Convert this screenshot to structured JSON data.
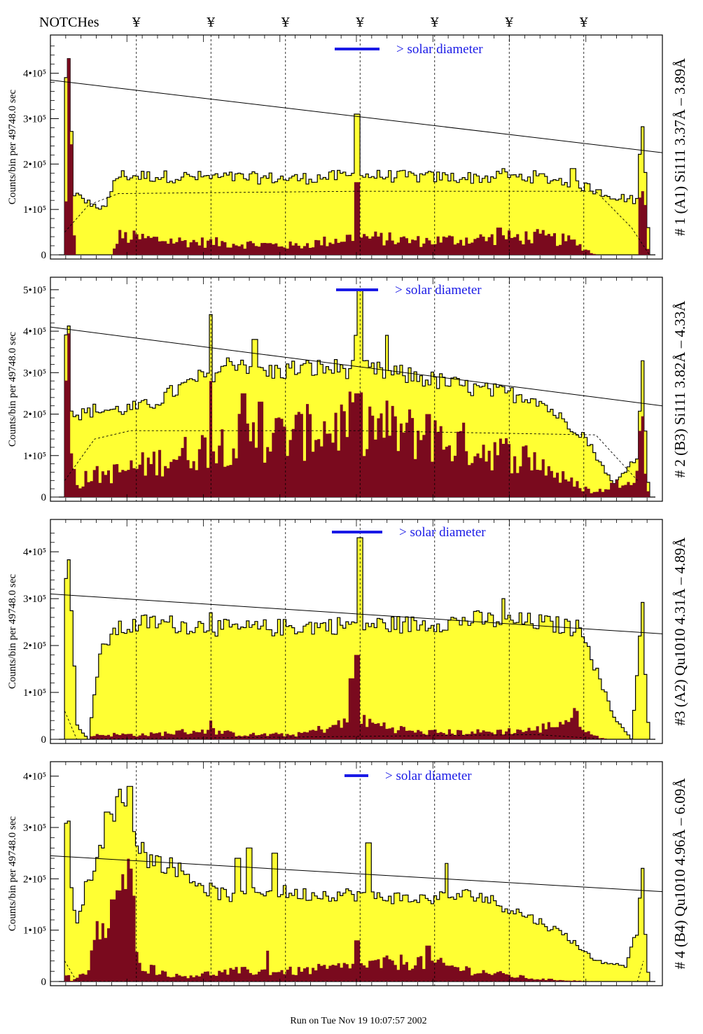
{
  "header": {
    "notches_label": "NOTCHes",
    "notch_symbol": "¥"
  },
  "notch_positions": [
    0.13,
    0.255,
    0.38,
    0.505,
    0.63,
    0.755,
    0.88
  ],
  "footer": {
    "run_text": "Run on Tue Nov 19 10:07:57 2002"
  },
  "colors": {
    "fill": "#ffff33",
    "dark": "#7a0a1e",
    "accent": "#1a1ae6"
  },
  "chart_data": [
    {
      "type": "area",
      "title": "# 1 (A1) Si111  3.37Å – 3.89Å",
      "ylabel": "Counts/bin per  49748.0 sec",
      "solar_label": "> solar diameter",
      "ylim": [
        0,
        475000
      ],
      "yticks": [
        0,
        100000,
        200000,
        300000,
        400000
      ],
      "ytick_labels": [
        "0",
        "1•10⁵",
        "2•10⁵",
        "3•10⁵",
        "4•10⁵"
      ],
      "xlim": [
        0,
        1
      ],
      "fit_line": [
        [
          0,
          385000
        ],
        [
          1,
          225000
        ]
      ],
      "bright_envelope": [
        [
          0.0,
          0
        ],
        [
          0.01,
          0
        ],
        [
          0.012,
          400000
        ],
        [
          0.018,
          430000
        ],
        [
          0.024,
          140000
        ],
        [
          0.04,
          120000
        ],
        [
          0.08,
          100000
        ],
        [
          0.09,
          160000
        ],
        [
          0.1,
          175000
        ],
        [
          0.2,
          172000
        ],
        [
          0.3,
          170000
        ],
        [
          0.4,
          168000
        ],
        [
          0.5,
          175000
        ],
        [
          0.6,
          172000
        ],
        [
          0.7,
          170000
        ],
        [
          0.8,
          172000
        ],
        [
          0.86,
          160000
        ],
        [
          0.93,
          130000
        ],
        [
          0.97,
          120000
        ],
        [
          0.978,
          320000
        ],
        [
          0.985,
          150000
        ],
        [
          0.99,
          0
        ],
        [
          1.0,
          0
        ]
      ],
      "bright_peaks": [
        [
          0.5,
          310000
        ],
        [
          0.745,
          190000
        ],
        [
          0.86,
          190000
        ]
      ],
      "dark_envelope": [
        [
          0.0,
          0
        ],
        [
          0.01,
          0
        ],
        [
          0.012,
          150000
        ],
        [
          0.016,
          330000
        ],
        [
          0.02,
          300000
        ],
        [
          0.024,
          50000
        ],
        [
          0.03,
          0
        ],
        [
          0.09,
          0
        ],
        [
          0.1,
          40000
        ],
        [
          0.2,
          30000
        ],
        [
          0.3,
          25000
        ],
        [
          0.4,
          20000
        ],
        [
          0.5,
          40000
        ],
        [
          0.6,
          30000
        ],
        [
          0.7,
          35000
        ],
        [
          0.8,
          40000
        ],
        [
          0.86,
          30000
        ],
        [
          0.9,
          0
        ],
        [
          0.97,
          0
        ],
        [
          0.975,
          180000
        ],
        [
          0.98,
          220000
        ],
        [
          0.985,
          30000
        ],
        [
          0.99,
          0
        ],
        [
          1.0,
          0
        ]
      ],
      "dark_peaks": [
        [
          0.5,
          160000
        ],
        [
          0.74,
          60000
        ]
      ],
      "dashed": [
        [
          0.01,
          50000
        ],
        [
          0.05,
          110000
        ],
        [
          0.1,
          135000
        ],
        [
          0.5,
          140000
        ],
        [
          0.9,
          140000
        ],
        [
          0.96,
          60000
        ],
        [
          0.99,
          0
        ]
      ]
    },
    {
      "type": "area",
      "title": "# 2 (B3) Si111  3.82Å – 4.33Å",
      "ylabel": "Counts/bin per  49748.0 sec",
      "solar_label": "> solar diameter",
      "ylim": [
        0,
        520000
      ],
      "yticks": [
        0,
        100000,
        200000,
        300000,
        400000,
        500000
      ],
      "ytick_labels": [
        "0",
        "1•10⁵",
        "2•10⁵",
        "3•10⁵",
        "4•10⁵",
        "5•10⁵"
      ],
      "xlim": [
        0,
        1
      ],
      "fit_line": [
        [
          0,
          410000
        ],
        [
          1,
          220000
        ]
      ],
      "bright_envelope": [
        [
          0.0,
          0
        ],
        [
          0.01,
          0
        ],
        [
          0.012,
          430000
        ],
        [
          0.016,
          460000
        ],
        [
          0.022,
          200000
        ],
        [
          0.04,
          200000
        ],
        [
          0.06,
          210000
        ],
        [
          0.1,
          210000
        ],
        [
          0.15,
          220000
        ],
        [
          0.2,
          260000
        ],
        [
          0.3,
          330000
        ],
        [
          0.35,
          300000
        ],
        [
          0.4,
          310000
        ],
        [
          0.5,
          310000
        ],
        [
          0.6,
          290000
        ],
        [
          0.7,
          260000
        ],
        [
          0.8,
          240000
        ],
        [
          0.85,
          180000
        ],
        [
          0.88,
          150000
        ],
        [
          0.93,
          30000
        ],
        [
          0.97,
          100000
        ],
        [
          0.978,
          330000
        ],
        [
          0.985,
          100000
        ],
        [
          0.99,
          0
        ],
        [
          1.0,
          0
        ]
      ],
      "bright_peaks": [
        [
          0.255,
          440000
        ],
        [
          0.33,
          380000
        ],
        [
          0.5,
          390000
        ],
        [
          0.505,
          500000
        ],
        [
          0.55,
          390000
        ]
      ],
      "dark_envelope": [
        [
          0.0,
          0
        ],
        [
          0.01,
          0
        ],
        [
          0.012,
          300000
        ],
        [
          0.016,
          350000
        ],
        [
          0.02,
          150000
        ],
        [
          0.03,
          30000
        ],
        [
          0.05,
          50000
        ],
        [
          0.1,
          60000
        ],
        [
          0.2,
          100000
        ],
        [
          0.3,
          140000
        ],
        [
          0.4,
          150000
        ],
        [
          0.5,
          180000
        ],
        [
          0.6,
          150000
        ],
        [
          0.7,
          120000
        ],
        [
          0.8,
          90000
        ],
        [
          0.85,
          40000
        ],
        [
          0.9,
          10000
        ],
        [
          0.97,
          60000
        ],
        [
          0.978,
          210000
        ],
        [
          0.985,
          30000
        ],
        [
          0.99,
          0
        ],
        [
          1.0,
          0
        ]
      ],
      "dark_peaks": [
        [
          0.255,
          280000
        ],
        [
          0.31,
          250000
        ],
        [
          0.34,
          230000
        ],
        [
          0.5,
          250000
        ],
        [
          0.42,
          200000
        ],
        [
          0.62,
          200000
        ]
      ],
      "dashed": [
        [
          0.01,
          40000
        ],
        [
          0.06,
          140000
        ],
        [
          0.12,
          160000
        ],
        [
          0.5,
          160000
        ],
        [
          0.9,
          150000
        ],
        [
          0.97,
          40000
        ]
      ]
    },
    {
      "type": "area",
      "title": "#3 (A2) Qu1010  4.31Å – 4.89Å",
      "ylabel": "Counts/bin per  49748.0 sec",
      "solar_label": "> solar diameter",
      "ylim": [
        0,
        460000
      ],
      "yticks": [
        0,
        100000,
        200000,
        300000,
        400000
      ],
      "ytick_labels": [
        "0",
        "1•10⁵",
        "2•10⁵",
        "3•10⁵",
        "4•10⁵"
      ],
      "xlim": [
        0,
        1
      ],
      "fit_line": [
        [
          0,
          310000
        ],
        [
          1,
          225000
        ]
      ],
      "bright_envelope": [
        [
          0.0,
          0
        ],
        [
          0.01,
          0
        ],
        [
          0.012,
          380000
        ],
        [
          0.016,
          410000
        ],
        [
          0.022,
          280000
        ],
        [
          0.03,
          30000
        ],
        [
          0.05,
          0
        ],
        [
          0.06,
          100000
        ],
        [
          0.07,
          180000
        ],
        [
          0.09,
          230000
        ],
        [
          0.15,
          250000
        ],
        [
          0.3,
          235000
        ],
        [
          0.4,
          240000
        ],
        [
          0.5,
          245000
        ],
        [
          0.6,
          245000
        ],
        [
          0.7,
          255000
        ],
        [
          0.8,
          250000
        ],
        [
          0.88,
          235000
        ],
        [
          0.9,
          150000
        ],
        [
          0.93,
          50000
        ],
        [
          0.96,
          0
        ],
        [
          0.97,
          150000
        ],
        [
          0.978,
          300000
        ],
        [
          0.985,
          100000
        ],
        [
          0.99,
          0
        ],
        [
          1.0,
          0
        ]
      ],
      "bright_peaks": [
        [
          0.255,
          270000
        ],
        [
          0.505,
          430000
        ],
        [
          0.745,
          300000
        ]
      ],
      "dark_envelope": [
        [
          0.0,
          0
        ],
        [
          0.05,
          0
        ],
        [
          0.06,
          10000
        ],
        [
          0.15,
          10000
        ],
        [
          0.25,
          20000
        ],
        [
          0.3,
          10000
        ],
        [
          0.4,
          10000
        ],
        [
          0.5,
          40000
        ],
        [
          0.6,
          15000
        ],
        [
          0.7,
          15000
        ],
        [
          0.8,
          20000
        ],
        [
          0.85,
          40000
        ],
        [
          0.87,
          50000
        ],
        [
          0.89,
          10000
        ],
        [
          0.92,
          0
        ],
        [
          1.0,
          0
        ]
      ],
      "dark_peaks": [
        [
          0.5,
          180000
        ],
        [
          0.49,
          130000
        ],
        [
          0.255,
          40000
        ]
      ],
      "dashed": [
        [
          0.01,
          60000
        ],
        [
          0.03,
          0
        ],
        [
          0.8,
          10000
        ],
        [
          0.92,
          0
        ]
      ]
    },
    {
      "type": "area",
      "title": "# 4 (B4) Qu1010 4.96Å – 6.09Å",
      "ylabel": "Counts/bin per  49748.0 sec",
      "solar_label": "> solar diameter",
      "ylim": [
        0,
        420000
      ],
      "yticks": [
        0,
        100000,
        200000,
        300000,
        400000
      ],
      "ytick_labels": [
        "0",
        "1•10⁵",
        "2•10⁵",
        "3•10⁵",
        "4•10⁵"
      ],
      "xlim": [
        0,
        1
      ],
      "fit_line": [
        [
          0,
          245000
        ],
        [
          1,
          175000
        ]
      ],
      "bright_envelope": [
        [
          0.0,
          0
        ],
        [
          0.01,
          0
        ],
        [
          0.012,
          320000
        ],
        [
          0.016,
          330000
        ],
        [
          0.02,
          180000
        ],
        [
          0.03,
          120000
        ],
        [
          0.05,
          200000
        ],
        [
          0.07,
          250000
        ],
        [
          0.09,
          320000
        ],
        [
          0.11,
          370000
        ],
        [
          0.13,
          280000
        ],
        [
          0.15,
          240000
        ],
        [
          0.2,
          220000
        ],
        [
          0.25,
          180000
        ],
        [
          0.3,
          160000
        ],
        [
          0.35,
          180000
        ],
        [
          0.4,
          170000
        ],
        [
          0.5,
          170000
        ],
        [
          0.6,
          160000
        ],
        [
          0.7,
          170000
        ],
        [
          0.8,
          120000
        ],
        [
          0.85,
          90000
        ],
        [
          0.9,
          40000
        ],
        [
          0.95,
          30000
        ],
        [
          0.97,
          100000
        ],
        [
          0.978,
          250000
        ],
        [
          0.985,
          50000
        ],
        [
          0.99,
          0
        ],
        [
          1.0,
          0
        ]
      ],
      "bright_peaks": [
        [
          0.08,
          330000
        ],
        [
          0.1,
          360000
        ],
        [
          0.12,
          380000
        ],
        [
          0.3,
          240000
        ],
        [
          0.32,
          260000
        ],
        [
          0.36,
          250000
        ],
        [
          0.52,
          270000
        ],
        [
          0.65,
          230000
        ]
      ],
      "dark_envelope": [
        [
          0.0,
          0
        ],
        [
          0.01,
          0
        ],
        [
          0.015,
          30000
        ],
        [
          0.02,
          0
        ],
        [
          0.05,
          20000
        ],
        [
          0.07,
          120000
        ],
        [
          0.09,
          80000
        ],
        [
          0.1,
          150000
        ],
        [
          0.12,
          180000
        ],
        [
          0.14,
          30000
        ],
        [
          0.2,
          10000
        ],
        [
          0.3,
          20000
        ],
        [
          0.4,
          20000
        ],
        [
          0.5,
          30000
        ],
        [
          0.6,
          40000
        ],
        [
          0.7,
          20000
        ],
        [
          0.8,
          5000
        ],
        [
          0.9,
          0
        ],
        [
          1.0,
          0
        ]
      ],
      "dark_peaks": [
        [
          0.09,
          160000
        ],
        [
          0.11,
          180000
        ],
        [
          0.35,
          60000
        ],
        [
          0.5,
          80000
        ],
        [
          0.62,
          70000
        ]
      ],
      "dashed": [
        [
          0.01,
          40000
        ],
        [
          0.03,
          0
        ],
        [
          0.97,
          0
        ],
        [
          0.98,
          40000
        ]
      ]
    }
  ]
}
